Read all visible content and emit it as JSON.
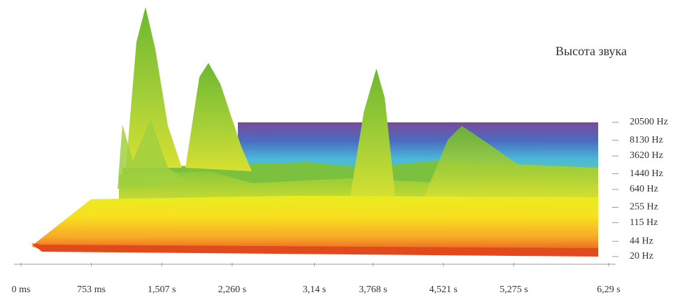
{
  "chart_data": {
    "type": "spectrogram",
    "title": "Высота звука",
    "xlim": [
      0,
      6.29
    ],
    "xticks": [
      {
        "value": 0,
        "label": "0 ms"
      },
      {
        "value": 0.753,
        "label": "753 ms"
      },
      {
        "value": 1.507,
        "label": "1,507 s"
      },
      {
        "value": 2.26,
        "label": "2,260 s"
      },
      {
        "value": 3.14,
        "label": "3,14 s"
      },
      {
        "value": 3.768,
        "label": "3,768 s"
      },
      {
        "value": 4.521,
        "label": "4,521 s"
      },
      {
        "value": 5.275,
        "label": "5,275 s"
      },
      {
        "value": 6.29,
        "label": "6,29 s"
      }
    ],
    "ylim": [
      20,
      20500
    ],
    "log_y": true,
    "yticks": [
      {
        "value": 20,
        "label": "20 Hz"
      },
      {
        "value": 44,
        "label": "44 Hz"
      },
      {
        "value": 115,
        "label": "115 Hz"
      },
      {
        "value": 255,
        "label": "255 Hz"
      },
      {
        "value": 640,
        "label": "640 Hz"
      },
      {
        "value": 1440,
        "label": "1440 Hz"
      },
      {
        "value": 3620,
        "label": "3620 Hz"
      },
      {
        "value": 8130,
        "label": "8130 Hz"
      },
      {
        "value": 20500,
        "label": "20500 Hz"
      }
    ]
  }
}
